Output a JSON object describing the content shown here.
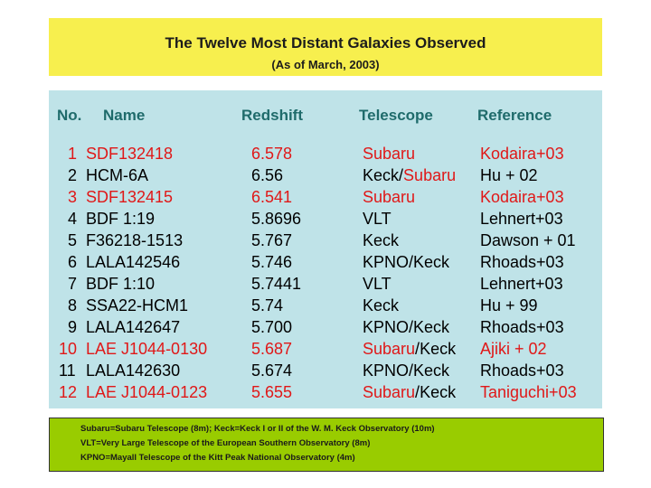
{
  "header": {
    "title": "The Twelve Most Distant Galaxies Observed",
    "subtitle": "(As of March, 2003)"
  },
  "columns": [
    "No.",
    "Name",
    "Redshift",
    "Telescope",
    "Reference"
  ],
  "rows": [
    {
      "no": "1",
      "name": "SDF132418",
      "redshift": "6.578",
      "tel_a": "Subaru",
      "tel_sep": "",
      "tel_b": "",
      "ref": "Kodaira+03",
      "red_text": true
    },
    {
      "no": "2",
      "name": "HCM-6A",
      "redshift": "6.56",
      "tel_a": "Keck",
      "tel_sep": "/",
      "tel_b": "Subaru",
      "ref": "Hu +  02",
      "red_text": false,
      "tel_b_red": true
    },
    {
      "no": "3",
      "name": "SDF132415",
      "redshift": "6.541",
      "tel_a": "Subaru",
      "tel_sep": "",
      "tel_b": "",
      "ref": "Kodaira+03",
      "red_text": true
    },
    {
      "no": "4",
      "name": "BDF 1:19",
      "redshift": "5.8696",
      "tel_a": "VLT",
      "tel_sep": "",
      "tel_b": "",
      "ref": "Lehnert+03",
      "red_text": false
    },
    {
      "no": "5",
      "name": "F36218-1513",
      "redshift": "5.767",
      "tel_a": "Keck",
      "tel_sep": "",
      "tel_b": "",
      "ref": "Dawson + 01",
      "red_text": false
    },
    {
      "no": "6",
      "name": "LALA142546",
      "redshift": "5.746",
      "tel_a": "KPNO",
      "tel_sep": "/",
      "tel_b": "Keck",
      "ref": "Rhoads+03",
      "red_text": false
    },
    {
      "no": "7",
      "name": "BDF 1:10",
      "redshift": "5.7441",
      "tel_a": "VLT",
      "tel_sep": "",
      "tel_b": "",
      "ref": "Lehnert+03",
      "red_text": false
    },
    {
      "no": "8",
      "name": "SSA22-HCM1",
      "redshift": "5.74",
      "tel_a": "Keck",
      "tel_sep": "",
      "tel_b": "",
      "ref": "Hu + 99",
      "red_text": false
    },
    {
      "no": "9",
      "name": "LALA142647",
      "redshift": "5.700",
      "tel_a": "KPNO",
      "tel_sep": "/",
      "tel_b": "Keck",
      "ref": "Rhoads+03",
      "red_text": false
    },
    {
      "no": "10",
      "name": "LAE J1044-0130",
      "redshift": "5.687",
      "tel_a": "Subaru",
      "tel_sep": "/",
      "tel_b": "Keck",
      "ref": "Ajiki + 02",
      "red_text": true,
      "tel_b_black": true
    },
    {
      "no": "11",
      "name": "LALA142630",
      "redshift": "5.674",
      "tel_a": "KPNO",
      "tel_sep": "/",
      "tel_b": "Keck",
      "ref": "Rhoads+03",
      "red_text": false
    },
    {
      "no": "12",
      "name": "LAE J1044-0123",
      "redshift": "5.655",
      "tel_a": "Subaru",
      "tel_sep": "/",
      "tel_b": "Keck",
      "ref": "Taniguchi+03",
      "red_text": true,
      "tel_b_black": true
    }
  ],
  "notes": [
    "Subaru=Subaru Telescope (8m);   Keck=Keck I or II of the W. M. Keck Observatory (10m)",
    "VLT=Very Large Telescope of the European Southern Observatory (8m)",
    "KPNO=Mayall Telescope of the Kitt Peak National Observatory (4m)"
  ],
  "colors": {
    "title_bg": "#f7ef4e",
    "table_bg": "#bfe3e8",
    "header_text": "#1f6b6b",
    "highlight_red": "#e01818",
    "notes_bg": "#99cc00"
  }
}
